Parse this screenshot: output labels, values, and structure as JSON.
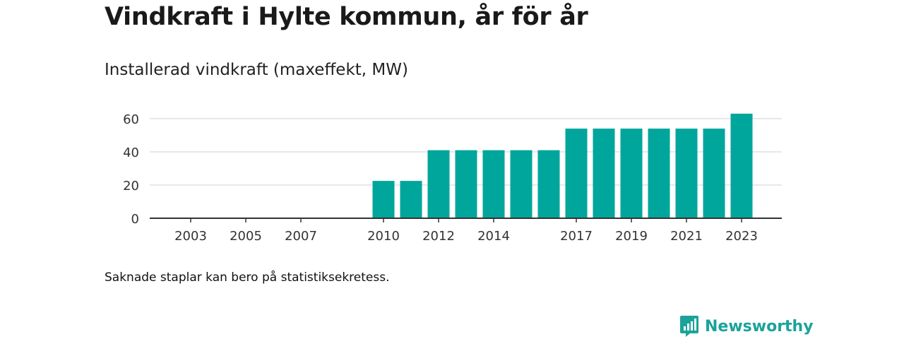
{
  "title": "Vindkraft i Hylte kommun, år för år",
  "subtitle": "Installerad vindkraft (maxeffekt, MW)",
  "note": "Saknade staplar kan bero på statistiksekretess.",
  "brand": {
    "name": "Newsworthy",
    "icon": "newsworthy-logo-icon"
  },
  "colors": {
    "bar": "#00a69c",
    "grid": "#d9d9d9",
    "axis": "#333333",
    "brand": "#1aa39b"
  },
  "chart_data": {
    "type": "bar",
    "title": "Installerad vindkraft (maxeffekt, MW)",
    "xlabel": "",
    "ylabel": "",
    "ylim": [
      0,
      65
    ],
    "yticks": [
      0,
      20,
      40,
      60
    ],
    "x": [
      2003,
      2004,
      2005,
      2006,
      2007,
      2008,
      2009,
      2010,
      2011,
      2012,
      2013,
      2014,
      2015,
      2016,
      2017,
      2018,
      2019,
      2020,
      2021,
      2022,
      2023
    ],
    "values": [
      null,
      null,
      null,
      null,
      null,
      null,
      null,
      22.5,
      22.5,
      41,
      41,
      41,
      41,
      41,
      54,
      54,
      54,
      54,
      54,
      54,
      63
    ],
    "xtick_labels": [
      "2003",
      "2005",
      "2007",
      "2010",
      "2012",
      "2014",
      "2017",
      "2019",
      "2021",
      "2023"
    ],
    "grid": "horizontal"
  }
}
